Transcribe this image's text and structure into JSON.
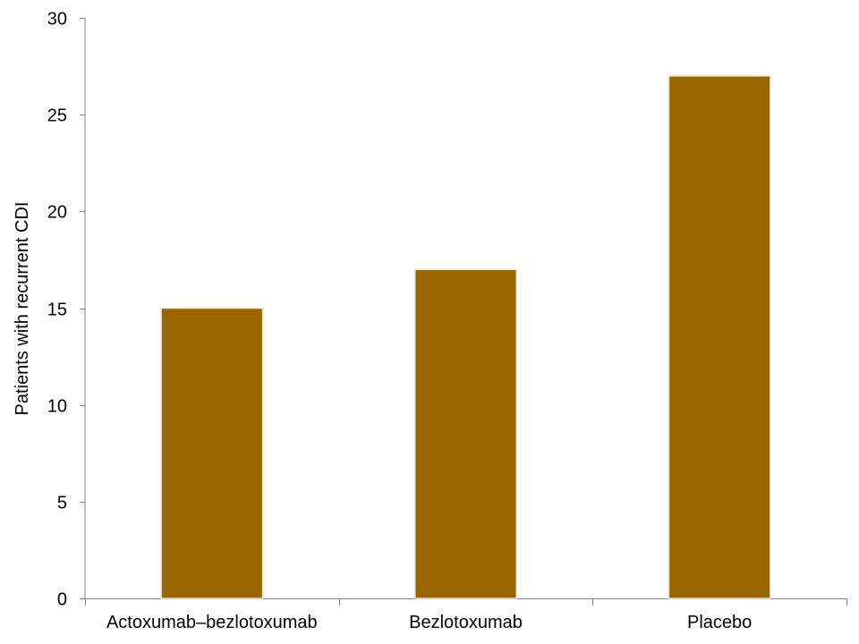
{
  "chart_data": {
    "type": "bar",
    "title": "",
    "xlabel": "",
    "ylabel": "Patients with recurrent CDI",
    "categories": [
      "Actoxumab–bezlotoxumab",
      "Bezlotoxumab",
      "Placebo"
    ],
    "values": [
      15,
      17,
      27
    ],
    "ylim": [
      0,
      30
    ],
    "yticks": [
      0,
      5,
      10,
      15,
      20,
      25,
      30
    ],
    "grid": false,
    "legend": "none",
    "bar_color": "#996600",
    "bar_edge_color": "#ece6d2"
  }
}
